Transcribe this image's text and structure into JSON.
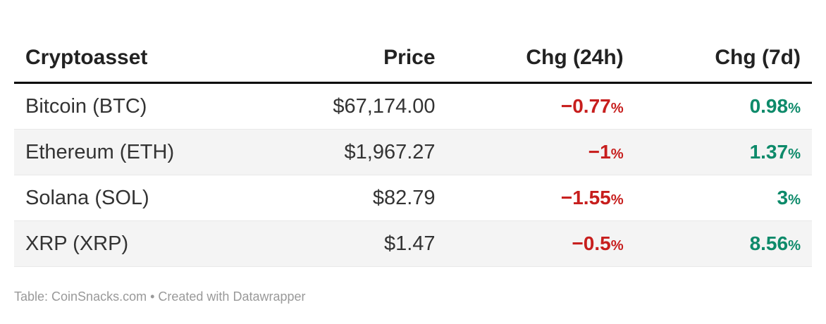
{
  "colors": {
    "negative": "#c71e1d",
    "positive": "#0d8a6a",
    "stripe": "#f4f4f4",
    "header_rule": "#000000",
    "footer_text": "#999999"
  },
  "table": {
    "columns": [
      {
        "label": "Cryptoasset",
        "align": "left"
      },
      {
        "label": "Price",
        "align": "right"
      },
      {
        "label": "Chg (24h)",
        "align": "right"
      },
      {
        "label": "Chg (7d)",
        "align": "right"
      }
    ],
    "percent_suffix": "%",
    "rows": [
      {
        "name": "Bitcoin (BTC)",
        "price": "$67,174.00",
        "chg24": "−0.77",
        "chg24_dir": "neg",
        "chg7": "0.98",
        "chg7_dir": "pos"
      },
      {
        "name": "Ethereum (ETH)",
        "price": "$1,967.27",
        "chg24": "−1",
        "chg24_dir": "neg",
        "chg7": "1.37",
        "chg7_dir": "pos"
      },
      {
        "name": "Solana (SOL)",
        "price": "$82.79",
        "chg24": "−1.55",
        "chg24_dir": "neg",
        "chg7": "3",
        "chg7_dir": "pos"
      },
      {
        "name": "XRP (XRP)",
        "price": "$1.47",
        "chg24": "−0.5",
        "chg24_dir": "neg",
        "chg7": "8.56",
        "chg7_dir": "pos"
      }
    ]
  },
  "footer": {
    "text": "Table: CoinSnacks.com • Created with Datawrapper"
  },
  "chart_data": {
    "type": "table",
    "columns": [
      "Cryptoasset",
      "Price",
      "Chg (24h)",
      "Chg (7d)"
    ],
    "rows": [
      [
        "Bitcoin (BTC)",
        "$67,174.00",
        "−0.77%",
        "0.98%"
      ],
      [
        "Ethereum (ETH)",
        "$1,967.27",
        "−1%",
        "1.37%"
      ],
      [
        "Solana (SOL)",
        "$82.79",
        "−1.55%",
        "3%"
      ],
      [
        "XRP (XRP)",
        "$1.47",
        "−0.5%",
        "8.56%"
      ]
    ],
    "notes": "Negative 24h changes shown in bold red; positive 7d changes shown in bold teal-green. Source footer: Table: CoinSnacks.com • Created with Datawrapper"
  }
}
